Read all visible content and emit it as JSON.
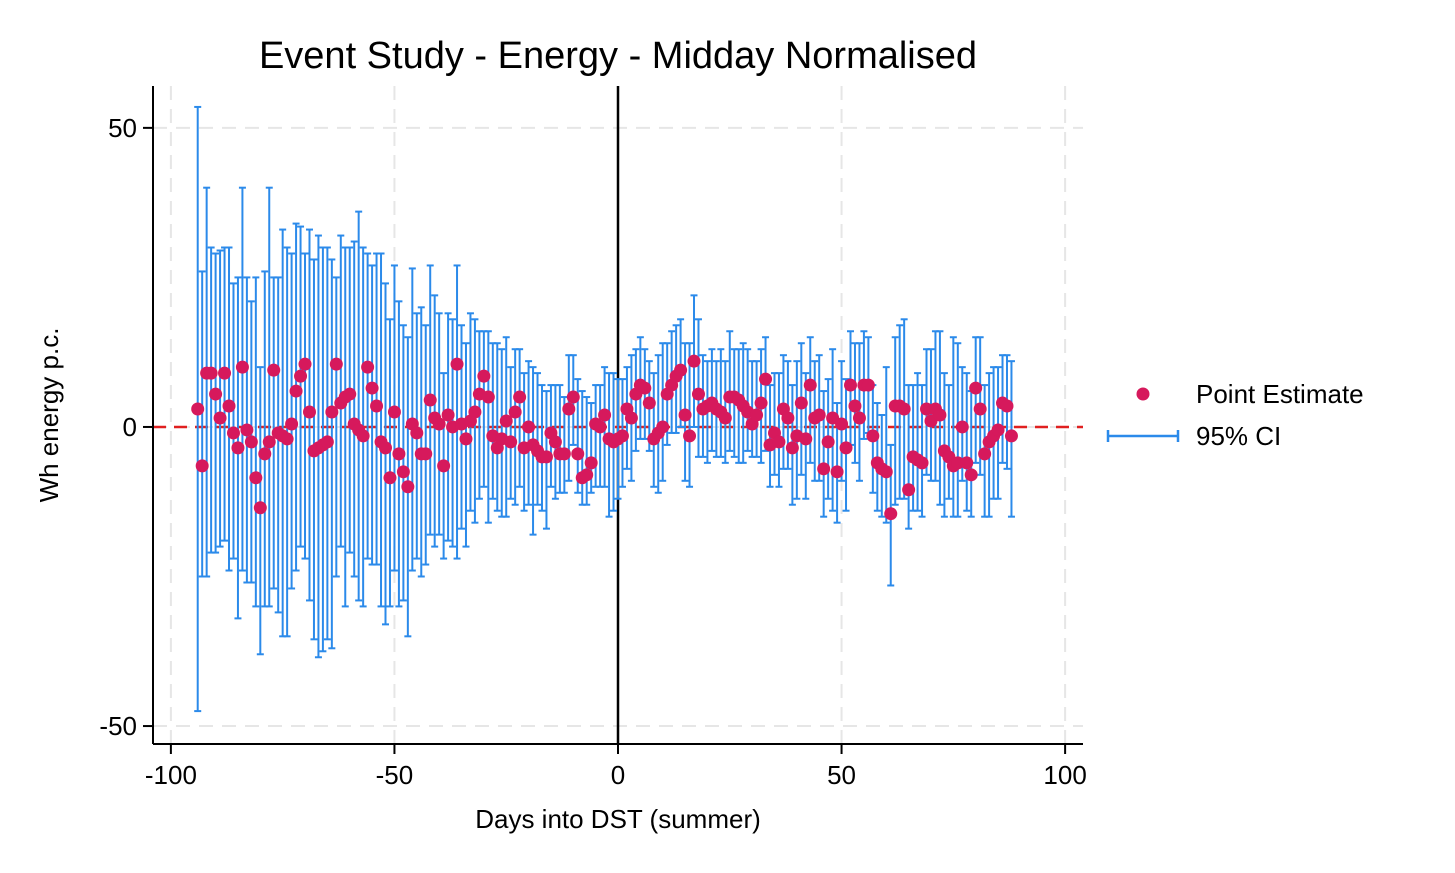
{
  "chart_data": {
    "type": "scatter",
    "title": "Event Study - Energy - Midday Normalised",
    "xlabel": "Days into DST (summer)",
    "ylabel": "Wh energy p.c.",
    "xlim": [
      -104,
      104
    ],
    "ylim": [
      -53,
      57
    ],
    "x_ticks": [
      -100,
      -50,
      0,
      50,
      100
    ],
    "y_ticks": [
      -50,
      0,
      50
    ],
    "grid": true,
    "legend_position": "right",
    "reference_lines": [
      {
        "type": "vertical",
        "x": 0,
        "color": "#000000"
      },
      {
        "type": "horizontal",
        "y": 0,
        "color": "#e02020",
        "dashed": true
      }
    ],
    "colors": {
      "point": "#d6195c",
      "ci": "#2b8aea"
    },
    "series": [
      {
        "name": "Point Estimate",
        "kind": "point"
      },
      {
        "name": "95% CI",
        "kind": "errorbar"
      }
    ],
    "points": [
      {
        "x": -94,
        "y": 3,
        "lo": -47.5,
        "hi": 53.5
      },
      {
        "x": -93,
        "y": -6.5,
        "lo": -25,
        "hi": 26
      },
      {
        "x": -92,
        "y": 9,
        "lo": -25,
        "hi": 40
      },
      {
        "x": -91,
        "y": 9,
        "lo": -21,
        "hi": 30
      },
      {
        "x": -90,
        "y": 5.5,
        "lo": -21,
        "hi": 29
      },
      {
        "x": -89,
        "y": 1.5,
        "lo": -20,
        "hi": 29.5
      },
      {
        "x": -88,
        "y": 9,
        "lo": -19,
        "hi": 30
      },
      {
        "x": -87,
        "y": 3.5,
        "lo": -24,
        "hi": 30
      },
      {
        "x": -86,
        "y": -1,
        "lo": -22,
        "hi": 24
      },
      {
        "x": -85,
        "y": -3.5,
        "lo": -32,
        "hi": 25
      },
      {
        "x": -84,
        "y": 10,
        "lo": -24,
        "hi": 40
      },
      {
        "x": -83,
        "y": -0.5,
        "lo": -26,
        "hi": 25
      },
      {
        "x": -82,
        "y": -2.5,
        "lo": -26,
        "hi": 21
      },
      {
        "x": -81,
        "y": -8.5,
        "lo": -30,
        "hi": 25
      },
      {
        "x": -80,
        "y": -13.5,
        "lo": -38,
        "hi": 10
      },
      {
        "x": -79,
        "y": -4.5,
        "lo": -30,
        "hi": 26
      },
      {
        "x": -78,
        "y": -2.5,
        "lo": -30,
        "hi": 40
      },
      {
        "x": -77,
        "y": 9.5,
        "lo": -27,
        "hi": 25
      },
      {
        "x": -76,
        "y": -1,
        "lo": -31,
        "hi": 25
      },
      {
        "x": -75,
        "y": -1.5,
        "lo": -35,
        "hi": 33
      },
      {
        "x": -74,
        "y": -2,
        "lo": -35,
        "hi": 30
      },
      {
        "x": -73,
        "y": 0.5,
        "lo": -27,
        "hi": 29
      },
      {
        "x": -72,
        "y": 6,
        "lo": -24,
        "hi": 34
      },
      {
        "x": -71,
        "y": 8.5,
        "lo": -20,
        "hi": 33.5
      },
      {
        "x": -70,
        "y": 10.5,
        "lo": -22,
        "hi": 29
      },
      {
        "x": -69,
        "y": 2.5,
        "lo": -29,
        "hi": 33
      },
      {
        "x": -68,
        "y": -4,
        "lo": -35.5,
        "hi": 28
      },
      {
        "x": -67,
        "y": -3.5,
        "lo": -38.5,
        "hi": 32
      },
      {
        "x": -66,
        "y": -3,
        "lo": -37.5,
        "hi": 30
      },
      {
        "x": -65,
        "y": -2.5,
        "lo": -35.5,
        "hi": 30
      },
      {
        "x": -64,
        "y": 2.5,
        "lo": -37,
        "hi": 28
      },
      {
        "x": -63,
        "y": 10.5,
        "lo": -25,
        "hi": 25
      },
      {
        "x": -62,
        "y": 4,
        "lo": -20,
        "hi": 32
      },
      {
        "x": -61,
        "y": 5,
        "lo": -30,
        "hi": 30
      },
      {
        "x": -60,
        "y": 5.5,
        "lo": -21,
        "hi": 30
      },
      {
        "x": -59,
        "y": 0.5,
        "lo": -25,
        "hi": 31
      },
      {
        "x": -58,
        "y": -0.5,
        "lo": -29,
        "hi": 36
      },
      {
        "x": -57,
        "y": -1.5,
        "lo": -30,
        "hi": 30
      },
      {
        "x": -56,
        "y": 10,
        "lo": -22,
        "hi": 29
      },
      {
        "x": -55,
        "y": 6.5,
        "lo": -23,
        "hi": 27
      },
      {
        "x": -54,
        "y": 3.5,
        "lo": -23,
        "hi": 29
      },
      {
        "x": -53,
        "y": -2.5,
        "lo": -30,
        "hi": 29
      },
      {
        "x": -52,
        "y": -3.5,
        "lo": -33,
        "hi": 24
      },
      {
        "x": -51,
        "y": -8.5,
        "lo": -30,
        "hi": 18
      },
      {
        "x": -50,
        "y": 2.5,
        "lo": -24,
        "hi": 27
      },
      {
        "x": -49,
        "y": -4.5,
        "lo": -30,
        "hi": 21
      },
      {
        "x": -48,
        "y": -7.5,
        "lo": -29,
        "hi": 17
      },
      {
        "x": -47,
        "y": -10,
        "lo": -35,
        "hi": 15
      },
      {
        "x": -46,
        "y": 0.5,
        "lo": -24,
        "hi": 26.5
      },
      {
        "x": -45,
        "y": -1,
        "lo": -22,
        "hi": 19
      },
      {
        "x": -44,
        "y": -4.5,
        "lo": -25,
        "hi": 20
      },
      {
        "x": -43,
        "y": -4.5,
        "lo": -23,
        "hi": 17
      },
      {
        "x": -42,
        "y": 4.5,
        "lo": -18,
        "hi": 27
      },
      {
        "x": -41,
        "y": 1.5,
        "lo": -20,
        "hi": 22
      },
      {
        "x": -40,
        "y": 0.5,
        "lo": -18,
        "hi": 19
      },
      {
        "x": -39,
        "y": -6.5,
        "lo": -22,
        "hi": 9
      },
      {
        "x": -38,
        "y": 2,
        "lo": -19,
        "hi": 19
      },
      {
        "x": -37,
        "y": 0,
        "lo": -20,
        "hi": 18
      },
      {
        "x": -36,
        "y": 10.5,
        "lo": -22,
        "hi": 27
      },
      {
        "x": -35,
        "y": 0.5,
        "lo": -17,
        "hi": 17
      },
      {
        "x": -34,
        "y": -2,
        "lo": -20,
        "hi": 14
      },
      {
        "x": -33,
        "y": 1,
        "lo": -14,
        "hi": 19
      },
      {
        "x": -32,
        "y": 2.5,
        "lo": -16,
        "hi": 18
      },
      {
        "x": -31,
        "y": 5.5,
        "lo": -12,
        "hi": 16
      },
      {
        "x": -30,
        "y": 8.5,
        "lo": -10,
        "hi": 16
      },
      {
        "x": -29,
        "y": 5,
        "lo": -16,
        "hi": 16
      },
      {
        "x": -28,
        "y": -1.5,
        "lo": -12,
        "hi": 14
      },
      {
        "x": -27,
        "y": -3.5,
        "lo": -14,
        "hi": 14
      },
      {
        "x": -26,
        "y": -2,
        "lo": -15,
        "hi": 13
      },
      {
        "x": -25,
        "y": 1,
        "lo": -15,
        "hi": 15
      },
      {
        "x": -24,
        "y": -2.5,
        "lo": -12,
        "hi": 10
      },
      {
        "x": -23,
        "y": 2.5,
        "lo": -13,
        "hi": 13
      },
      {
        "x": -22,
        "y": 5,
        "lo": -10,
        "hi": 13
      },
      {
        "x": -21,
        "y": -3.5,
        "lo": -14,
        "hi": 9
      },
      {
        "x": -20,
        "y": 0,
        "lo": -13,
        "hi": 11
      },
      {
        "x": -19,
        "y": -3,
        "lo": -18,
        "hi": 10
      },
      {
        "x": -18,
        "y": -4,
        "lo": -13,
        "hi": 9
      },
      {
        "x": -17,
        "y": -5,
        "lo": -14,
        "hi": 7
      },
      {
        "x": -16,
        "y": -5,
        "lo": -17,
        "hi": 6
      },
      {
        "x": -15,
        "y": -1,
        "lo": -10,
        "hi": 7
      },
      {
        "x": -14,
        "y": -2.5,
        "lo": -12,
        "hi": 7
      },
      {
        "x": -13,
        "y": -4.5,
        "lo": -11,
        "hi": 7
      },
      {
        "x": -12,
        "y": -4.5,
        "lo": -11,
        "hi": 5
      },
      {
        "x": -11,
        "y": 3,
        "lo": -9,
        "hi": 12
      },
      {
        "x": -10,
        "y": 5,
        "lo": -3,
        "hi": 12
      },
      {
        "x": -9,
        "y": -4.5,
        "lo": -11,
        "hi": 8
      },
      {
        "x": -8,
        "y": -8.5,
        "lo": -13,
        "hi": 6
      },
      {
        "x": -7,
        "y": -8,
        "lo": -13,
        "hi": 5
      },
      {
        "x": -6,
        "y": -6,
        "lo": -11,
        "hi": 4
      },
      {
        "x": -5,
        "y": 0.5,
        "lo": -10,
        "hi": 7
      },
      {
        "x": -4,
        "y": 0,
        "lo": -10,
        "hi": 7
      },
      {
        "x": -3,
        "y": 2,
        "lo": -10,
        "hi": 10
      },
      {
        "x": -2,
        "y": -2,
        "lo": -15,
        "hi": 9
      },
      {
        "x": -1,
        "y": -2.5,
        "lo": -14,
        "hi": 9
      },
      {
        "x": 0,
        "y": -2,
        "lo": -12,
        "hi": 8
      },
      {
        "x": 1,
        "y": -1.5,
        "lo": -10,
        "hi": 8
      },
      {
        "x": 2,
        "y": 3,
        "lo": -7,
        "hi": 10
      },
      {
        "x": 3,
        "y": 1.5,
        "lo": -9,
        "hi": 12
      },
      {
        "x": 4,
        "y": 5.5,
        "lo": -4,
        "hi": 13
      },
      {
        "x": 5,
        "y": 7,
        "lo": -2,
        "hi": 15
      },
      {
        "x": 6,
        "y": 6.5,
        "lo": -2,
        "hi": 13
      },
      {
        "x": 7,
        "y": 4,
        "lo": -4,
        "hi": 11
      },
      {
        "x": 8,
        "y": -2,
        "lo": -10,
        "hi": 9
      },
      {
        "x": 9,
        "y": -1,
        "lo": -11,
        "hi": 12
      },
      {
        "x": 10,
        "y": 0,
        "lo": -9,
        "hi": 14
      },
      {
        "x": 11,
        "y": 5.5,
        "lo": -3,
        "hi": 14
      },
      {
        "x": 12,
        "y": 7,
        "lo": -1,
        "hi": 16
      },
      {
        "x": 13,
        "y": 8.5,
        "lo": -1,
        "hi": 17
      },
      {
        "x": 14,
        "y": 9.5,
        "lo": 0,
        "hi": 18
      },
      {
        "x": 15,
        "y": 2,
        "lo": -9,
        "hi": 14
      },
      {
        "x": 16,
        "y": -1.5,
        "lo": -10,
        "hi": 14
      },
      {
        "x": 17,
        "y": 11,
        "lo": 0,
        "hi": 22
      },
      {
        "x": 18,
        "y": 5.5,
        "lo": -5,
        "hi": 18
      },
      {
        "x": 19,
        "y": 3,
        "lo": -5,
        "hi": 12
      },
      {
        "x": 20,
        "y": 3.5,
        "lo": -6,
        "hi": 11
      },
      {
        "x": 21,
        "y": 4,
        "lo": -4,
        "hi": 13
      },
      {
        "x": 22,
        "y": 3,
        "lo": -5,
        "hi": 11
      },
      {
        "x": 23,
        "y": 2.5,
        "lo": -5,
        "hi": 13
      },
      {
        "x": 24,
        "y": 1.5,
        "lo": -6,
        "hi": 11
      },
      {
        "x": 25,
        "y": 5,
        "lo": -4,
        "hi": 16
      },
      {
        "x": 26,
        "y": 5,
        "lo": -5,
        "hi": 13
      },
      {
        "x": 27,
        "y": 4.5,
        "lo": -6,
        "hi": 13
      },
      {
        "x": 28,
        "y": 3.5,
        "lo": -6,
        "hi": 14
      },
      {
        "x": 29,
        "y": 2.5,
        "lo": -4,
        "hi": 13
      },
      {
        "x": 30,
        "y": 0.5,
        "lo": -5,
        "hi": 11
      },
      {
        "x": 31,
        "y": 2,
        "lo": -5,
        "hi": 11
      },
      {
        "x": 32,
        "y": 4,
        "lo": -6,
        "hi": 13
      },
      {
        "x": 33,
        "y": 8,
        "lo": -4,
        "hi": 15
      },
      {
        "x": 34,
        "y": -3,
        "lo": -10,
        "hi": 7
      },
      {
        "x": 35,
        "y": -1,
        "lo": -8,
        "hi": 9
      },
      {
        "x": 36,
        "y": -2.5,
        "lo": -10,
        "hi": 9
      },
      {
        "x": 37,
        "y": 3,
        "lo": -7,
        "hi": 12
      },
      {
        "x": 38,
        "y": 1.5,
        "lo": -7,
        "hi": 11
      },
      {
        "x": 39,
        "y": -3.5,
        "lo": -13,
        "hi": 7
      },
      {
        "x": 40,
        "y": -1.5,
        "lo": -12,
        "hi": 11
      },
      {
        "x": 41,
        "y": 4,
        "lo": -8,
        "hi": 14
      },
      {
        "x": 42,
        "y": -2,
        "lo": -12,
        "hi": 9
      },
      {
        "x": 43,
        "y": 7,
        "lo": -6,
        "hi": 15
      },
      {
        "x": 44,
        "y": 1.5,
        "lo": -9,
        "hi": 11
      },
      {
        "x": 45,
        "y": 2,
        "lo": -9,
        "hi": 12
      },
      {
        "x": 46,
        "y": -7,
        "lo": -15,
        "hi": 6
      },
      {
        "x": 47,
        "y": -2.5,
        "lo": -12,
        "hi": 8
      },
      {
        "x": 48,
        "y": 1.5,
        "lo": -14,
        "hi": 13
      },
      {
        "x": 49,
        "y": -7.5,
        "lo": -16,
        "hi": 4
      },
      {
        "x": 50,
        "y": 0.5,
        "lo": -9,
        "hi": 11
      },
      {
        "x": 51,
        "y": -3.5,
        "lo": -14,
        "hi": 8
      },
      {
        "x": 52,
        "y": 7,
        "lo": -3,
        "hi": 16
      },
      {
        "x": 53,
        "y": 3.5,
        "lo": -6,
        "hi": 14
      },
      {
        "x": 54,
        "y": 1.5,
        "lo": -9,
        "hi": 14
      },
      {
        "x": 55,
        "y": 7,
        "lo": -2,
        "hi": 16
      },
      {
        "x": 56,
        "y": 7,
        "lo": -1,
        "hi": 15
      },
      {
        "x": 57,
        "y": -1.5,
        "lo": -11,
        "hi": 7
      },
      {
        "x": 58,
        "y": -6,
        "lo": -14,
        "hi": 4
      },
      {
        "x": 59,
        "y": -7,
        "lo": -15,
        "hi": 2
      },
      {
        "x": 60,
        "y": -7.5,
        "lo": -16,
        "hi": 10
      },
      {
        "x": 61,
        "y": -14.5,
        "lo": -26.5,
        "hi": -3
      },
      {
        "x": 62,
        "y": 3.5,
        "lo": -13,
        "hi": 15
      },
      {
        "x": 63,
        "y": 3.5,
        "lo": -12,
        "hi": 17
      },
      {
        "x": 64,
        "y": 3,
        "lo": -12,
        "hi": 18
      },
      {
        "x": 65,
        "y": -10.5,
        "lo": -17,
        "hi": 7
      },
      {
        "x": 66,
        "y": -5,
        "lo": -14,
        "hi": 7
      },
      {
        "x": 67,
        "y": -5.5,
        "lo": -14,
        "hi": 9
      },
      {
        "x": 68,
        "y": -6,
        "lo": -15,
        "hi": 7
      },
      {
        "x": 69,
        "y": 3,
        "lo": -8,
        "hi": 13
      },
      {
        "x": 70,
        "y": 1,
        "lo": -9,
        "hi": 13
      },
      {
        "x": 71,
        "y": 3,
        "lo": -9,
        "hi": 16
      },
      {
        "x": 72,
        "y": 2,
        "lo": -13,
        "hi": 16
      },
      {
        "x": 73,
        "y": -4,
        "lo": -15,
        "hi": 9
      },
      {
        "x": 74,
        "y": -5,
        "lo": -12,
        "hi": 7
      },
      {
        "x": 75,
        "y": -6.5,
        "lo": -15,
        "hi": 15
      },
      {
        "x": 76,
        "y": -6,
        "lo": -15,
        "hi": 14
      },
      {
        "x": 77,
        "y": 0,
        "lo": -9,
        "hi": 10
      },
      {
        "x": 78,
        "y": -6,
        "lo": -14,
        "hi": 9
      },
      {
        "x": 79,
        "y": -8,
        "lo": -15,
        "hi": 6
      },
      {
        "x": 80,
        "y": 6.5,
        "lo": -6,
        "hi": 15
      },
      {
        "x": 81,
        "y": 3,
        "lo": -8,
        "hi": 15
      },
      {
        "x": 82,
        "y": -4.5,
        "lo": -15,
        "hi": 7
      },
      {
        "x": 83,
        "y": -2.5,
        "lo": -15,
        "hi": 9
      },
      {
        "x": 84,
        "y": -1.5,
        "lo": -12,
        "hi": 10
      },
      {
        "x": 85,
        "y": -0.5,
        "lo": -12,
        "hi": 10
      },
      {
        "x": 86,
        "y": 4,
        "lo": -6,
        "hi": 12
      },
      {
        "x": 87,
        "y": 3.5,
        "lo": -7,
        "hi": 12
      },
      {
        "x": 88,
        "y": -1.5,
        "lo": -15,
        "hi": 11
      }
    ]
  }
}
